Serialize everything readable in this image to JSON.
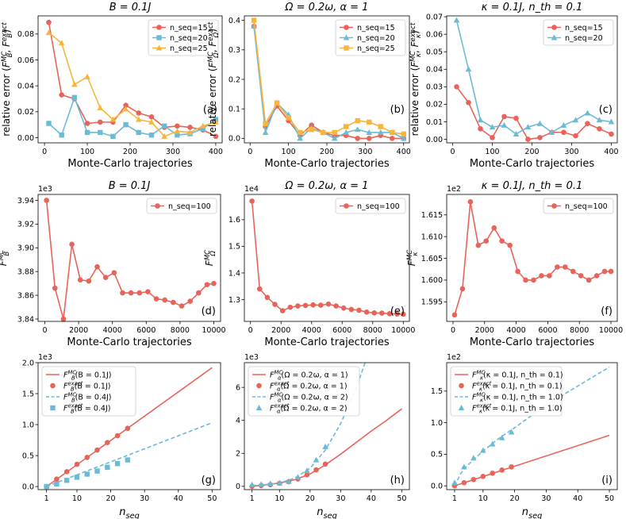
{
  "colors": {
    "red": "#e8645a",
    "blue": "#6bbad6",
    "orange": "#f7b53b"
  },
  "chart_data": [
    {
      "type": "line",
      "tag": "(a)",
      "title": "B = 0.1J",
      "xlabel": "Monte-Carlo trajectories",
      "ylabel": "relative error (F_B^MC, F_B^exact)",
      "xlim": [
        -15,
        415
      ],
      "ylim": [
        -0.004,
        0.094
      ],
      "xticks": [
        0,
        100,
        200,
        300,
        400
      ],
      "yticks": [
        0.0,
        0.02,
        0.04,
        0.06,
        0.08
      ],
      "legend_loc": "upper right",
      "series": [
        {
          "name": "n_seq=15",
          "color": "red",
          "marker": "circle",
          "x": [
            10,
            40,
            70,
            100,
            130,
            160,
            190,
            220,
            250,
            280,
            310,
            340,
            370,
            400
          ],
          "y": [
            0.089,
            0.033,
            0.03,
            0.011,
            0.012,
            0.012,
            0.025,
            0.019,
            0.016,
            0.008,
            0.009,
            0.008,
            0.006,
            0.001
          ]
        },
        {
          "name": "n_seq=20",
          "color": "blue",
          "marker": "square",
          "x": [
            10,
            40,
            70,
            100,
            130,
            160,
            190,
            220,
            250,
            280,
            310,
            340,
            370,
            400
          ],
          "y": [
            0.011,
            0.002,
            0.031,
            0.004,
            0.004,
            0.001,
            0.01,
            0.004,
            0.002,
            0.009,
            0.002,
            0.003,
            0.007,
            0.014
          ]
        },
        {
          "name": "n_seq=25",
          "color": "orange",
          "marker": "triangle",
          "x": [
            10,
            40,
            70,
            100,
            130,
            160,
            190,
            220,
            250,
            280,
            310,
            340,
            370,
            400
          ],
          "y": [
            0.081,
            0.073,
            0.041,
            0.047,
            0.023,
            0.014,
            0.022,
            0.014,
            0.012,
            0.001,
            0.005,
            0.004,
            0.009,
            0.012
          ]
        }
      ]
    },
    {
      "type": "line",
      "tag": "(b)",
      "title": "Ω = 0.2ω, α = 1",
      "xlabel": "Monte-Carlo trajectories",
      "ylabel": "relative error (F_Ω^MC, F_Ω^exact)",
      "xlim": [
        -15,
        415
      ],
      "ylim": [
        -0.015,
        0.415
      ],
      "xticks": [
        0,
        100,
        200,
        300,
        400
      ],
      "yticks": [
        0.0,
        0.1,
        0.2,
        0.3,
        0.4
      ],
      "legend_loc": "upper right",
      "series": [
        {
          "name": "n_seq=15",
          "color": "red",
          "marker": "circle",
          "x": [
            10,
            40,
            70,
            100,
            130,
            160,
            190,
            220,
            250,
            280,
            310,
            340,
            370,
            400
          ],
          "y": [
            0.38,
            0.04,
            0.11,
            0.06,
            0.01,
            0.045,
            0.02,
            0.01,
            0.01,
            0.0,
            0.0,
            0.01,
            0.0,
            0.0
          ]
        },
        {
          "name": "n_seq=20",
          "color": "blue",
          "marker": "triangle",
          "x": [
            10,
            40,
            70,
            100,
            130,
            160,
            190,
            220,
            250,
            280,
            310,
            340,
            370,
            400
          ],
          "y": [
            0.38,
            0.02,
            0.12,
            0.08,
            0.0,
            0.035,
            0.02,
            0.0,
            0.02,
            0.03,
            0.02,
            0.02,
            0.02,
            0.0
          ]
        },
        {
          "name": "n_seq=25",
          "color": "orange",
          "marker": "square",
          "x": [
            10,
            40,
            70,
            100,
            130,
            160,
            190,
            220,
            250,
            280,
            310,
            340,
            370,
            400
          ],
          "y": [
            0.4,
            0.05,
            0.12,
            0.07,
            0.02,
            0.03,
            0.02,
            0.02,
            0.04,
            0.06,
            0.055,
            0.04,
            0.02,
            0.015
          ]
        }
      ]
    },
    {
      "type": "line",
      "tag": "(c)",
      "title": "κ = 0.1J, n_th = 0.1",
      "xlabel": "Monte-Carlo trajectories",
      "ylabel": "relative error (F_κ^MC, F_κ^exact)",
      "xlim": [
        -15,
        415
      ],
      "ylim": [
        -0.002,
        0.0705
      ],
      "xticks": [
        0,
        100,
        200,
        300,
        400
      ],
      "yticks": [
        0.0,
        0.01,
        0.02,
        0.03,
        0.04,
        0.05,
        0.06,
        0.07
      ],
      "legend_loc": "upper right",
      "series": [
        {
          "name": "n_seq=15",
          "color": "red",
          "marker": "circle",
          "x": [
            10,
            40,
            70,
            100,
            130,
            160,
            190,
            220,
            250,
            280,
            310,
            340,
            370,
            400
          ],
          "y": [
            0.03,
            0.021,
            0.006,
            0.001,
            0.013,
            0.012,
            0.0,
            0.001,
            0.004,
            0.004,
            0.002,
            0.009,
            0.006,
            0.003
          ]
        },
        {
          "name": "n_seq=20",
          "color": "blue",
          "marker": "triangle",
          "x": [
            10,
            40,
            70,
            100,
            130,
            160,
            190,
            220,
            250,
            280,
            310,
            340,
            370,
            400
          ],
          "y": [
            0.068,
            0.04,
            0.011,
            0.007,
            0.008,
            0.003,
            0.007,
            0.009,
            0.004,
            0.008,
            0.011,
            0.015,
            0.011,
            0.01
          ]
        }
      ]
    },
    {
      "type": "line",
      "tag": "(d)",
      "title": "B = 0.1J",
      "xlabel": "Monte-Carlo trajectories",
      "ylabel": "F_B^MC",
      "sci": "1e3",
      "xlim": [
        -400,
        10400
      ],
      "ylim": [
        3.838,
        3.945
      ],
      "xticks": [
        0,
        2000,
        4000,
        6000,
        8000,
        10000
      ],
      "yticks": [
        3.84,
        3.86,
        3.88,
        3.9,
        3.92,
        3.94
      ],
      "legend_loc": "upper right",
      "series": [
        {
          "name": "n_seq=100",
          "color": "red",
          "marker": "circle",
          "x": [
            100,
            600,
            1100,
            1600,
            2100,
            2600,
            3100,
            3600,
            4100,
            4600,
            5100,
            5600,
            6100,
            6600,
            7100,
            7600,
            8100,
            8600,
            9100,
            9600,
            10000
          ],
          "y": [
            3.94,
            3.866,
            3.84,
            3.903,
            3.873,
            3.872,
            3.884,
            3.875,
            3.879,
            3.862,
            3.862,
            3.862,
            3.863,
            3.857,
            3.856,
            3.854,
            3.851,
            3.855,
            3.862,
            3.869,
            3.87
          ]
        }
      ]
    },
    {
      "type": "line",
      "tag": "(e)",
      "title": "Ω = 0.2ω, α = 1",
      "xlabel": "Monte-Carlo trajectories",
      "ylabel": "F_Ω^MC",
      "sci": "1e4",
      "xlim": [
        -400,
        10400
      ],
      "ylim": [
        1.218,
        1.695
      ],
      "xticks": [
        0,
        2000,
        4000,
        6000,
        8000,
        10000
      ],
      "yticks": [
        1.3,
        1.4,
        1.5,
        1.6
      ],
      "legend_loc": "upper right",
      "series": [
        {
          "name": "n_seq=100",
          "color": "red",
          "marker": "circle",
          "x": [
            100,
            600,
            1100,
            1600,
            2100,
            2600,
            3100,
            3600,
            4100,
            4600,
            5100,
            5600,
            6100,
            6600,
            7100,
            7600,
            8100,
            8600,
            9100,
            9600,
            10000
          ],
          "y": [
            1.67,
            1.34,
            1.308,
            1.282,
            1.258,
            1.271,
            1.276,
            1.278,
            1.28,
            1.279,
            1.283,
            1.276,
            1.268,
            1.263,
            1.26,
            1.253,
            1.25,
            1.249,
            1.247,
            1.246,
            1.245
          ]
        }
      ]
    },
    {
      "type": "line",
      "tag": "(f)",
      "title": "κ = 0.1J, n_th = 0.1",
      "xlabel": "Monte-Carlo trajectories",
      "ylabel": "F_κ^MC",
      "sci": "1e2",
      "xlim": [
        -400,
        10400
      ],
      "ylim": [
        1.5905,
        1.6197
      ],
      "xticks": [
        0,
        2000,
        4000,
        6000,
        8000,
        10000
      ],
      "yticks": [
        1.595,
        1.6,
        1.605,
        1.61,
        1.615
      ],
      "legend_loc": "upper right",
      "series": [
        {
          "name": "n_seq=100",
          "color": "red",
          "marker": "circle",
          "x": [
            100,
            600,
            1100,
            1600,
            2100,
            2600,
            3100,
            3600,
            4100,
            4600,
            5100,
            5600,
            6100,
            6600,
            7100,
            7600,
            8100,
            8600,
            9100,
            9600,
            10000
          ],
          "y": [
            1.592,
            1.598,
            1.618,
            1.608,
            1.609,
            1.612,
            1.609,
            1.608,
            1.602,
            1.6,
            1.6,
            1.601,
            1.601,
            1.603,
            1.603,
            1.602,
            1.601,
            1.6,
            1.601,
            1.602,
            1.602
          ]
        }
      ]
    },
    {
      "type": "line",
      "tag": "(g)",
      "title": "",
      "xlabel": "n_seq",
      "ylabel": "",
      "sci": "1e3",
      "xlim": [
        -1.5,
        52.5
      ],
      "ylim": [
        -0.05,
        2.0
      ],
      "xticks": [
        1,
        10,
        20,
        30,
        40,
        50
      ],
      "yticks": [
        0.0,
        0.5,
        1.0,
        1.5,
        2.0
      ],
      "legend_loc": "upper left",
      "series": [
        {
          "name": "F_B^MC(B = 0.1J)",
          "color": "red",
          "style": "solid",
          "x": [
            1,
            50
          ],
          "y": [
            0.0,
            1.92
          ]
        },
        {
          "name": "F_B^exact(B = 0.1J)",
          "color": "red",
          "marker": "circle",
          "x": [
            1,
            4,
            7,
            10,
            13,
            16,
            19,
            22,
            25
          ],
          "y": [
            0.0,
            0.12,
            0.24,
            0.36,
            0.47,
            0.59,
            0.71,
            0.82,
            0.94
          ]
        },
        {
          "name": "F_B^MC(B = 0.4J)",
          "color": "blue",
          "style": "dashed",
          "x": [
            1,
            50
          ],
          "y": [
            0.0,
            1.03
          ]
        },
        {
          "name": "F_B^exact(B = 0.4J)",
          "color": "blue",
          "marker": "square",
          "x": [
            1,
            4,
            7,
            10,
            13,
            16,
            19,
            22,
            25
          ],
          "y": [
            0.0,
            0.04,
            0.1,
            0.15,
            0.2,
            0.25,
            0.31,
            0.37,
            0.43
          ]
        }
      ]
    },
    {
      "type": "line",
      "tag": "(h)",
      "title": "",
      "xlabel": "n_seq",
      "ylabel": "",
      "sci": "1e3",
      "xlim": [
        -1.5,
        52.5
      ],
      "ylim": [
        -0.2,
        7.5
      ],
      "xticks": [
        1,
        10,
        20,
        30,
        40,
        50
      ],
      "yticks": [
        0,
        2,
        4,
        6
      ],
      "legend_loc": "upper left",
      "series": [
        {
          "name": "F_α^MC(Ω = 0.2ω, α = 1)",
          "color": "red",
          "style": "solid",
          "x": [
            1,
            5,
            10,
            15,
            20,
            25,
            30,
            35,
            40,
            45,
            50
          ],
          "y": [
            0.0,
            0.08,
            0.2,
            0.4,
            0.75,
            1.3,
            1.95,
            2.65,
            3.35,
            4.0,
            4.7
          ]
        },
        {
          "name": "F_α^exact(Ω = 0.2ω, α = 1)",
          "color": "red",
          "marker": "circle",
          "x": [
            1,
            4,
            7,
            10,
            13,
            16,
            19,
            22,
            25
          ],
          "y": [
            0.0,
            0.05,
            0.1,
            0.18,
            0.28,
            0.45,
            0.7,
            1.0,
            1.35
          ]
        },
        {
          "name": "F_α^MC(Ω = 0.2ω, α = 2)",
          "color": "blue",
          "style": "dashed",
          "x": [
            1,
            5,
            10,
            15,
            20,
            25,
            30,
            35,
            38
          ],
          "y": [
            0.05,
            0.1,
            0.2,
            0.5,
            1.1,
            2.2,
            3.8,
            5.9,
            7.5
          ]
        },
        {
          "name": "F_α^exact(Ω = 0.2ω, α = 2)",
          "color": "blue",
          "marker": "triangle",
          "x": [
            1,
            4,
            7,
            10,
            13,
            16,
            19,
            22,
            25
          ],
          "y": [
            0.1,
            0.12,
            0.16,
            0.2,
            0.3,
            0.55,
            0.95,
            1.6,
            2.4
          ]
        }
      ]
    },
    {
      "type": "line",
      "tag": "(i)",
      "title": "",
      "xlabel": "n_seq",
      "ylabel": "",
      "sci": "1e2",
      "xlim": [
        -1.5,
        52.5
      ],
      "ylim": [
        -0.06,
        1.95
      ],
      "xticks": [
        1,
        10,
        20,
        30,
        40,
        50
      ],
      "yticks": [
        0.0,
        0.5,
        1.0,
        1.5
      ],
      "legend_loc": "upper left",
      "series": [
        {
          "name": "F_κ^MC(κ = 0.1J, n_th = 0.1)",
          "color": "red",
          "style": "solid",
          "x": [
            1,
            50
          ],
          "y": [
            0.0,
            0.8
          ]
        },
        {
          "name": "F_κ^exact(κ = 0.1J, n_th = 0.1)",
          "color": "red",
          "marker": "circle",
          "x": [
            1,
            4,
            7,
            10,
            13,
            16,
            19
          ],
          "y": [
            0.0,
            0.05,
            0.1,
            0.15,
            0.2,
            0.25,
            0.3
          ]
        },
        {
          "name": "F_κ^MC(κ = 0.1J, n_th = 1.0)",
          "color": "blue",
          "style": "dashed",
          "x": [
            1,
            3,
            5,
            10,
            15,
            20,
            25,
            30,
            35,
            40,
            45,
            50
          ],
          "y": [
            0.0,
            0.2,
            0.32,
            0.55,
            0.75,
            0.92,
            1.1,
            1.28,
            1.43,
            1.58,
            1.73,
            1.88
          ]
        },
        {
          "name": "F_κ^exact(κ = 0.1J, n_th = 1.0)",
          "color": "blue",
          "marker": "triangle",
          "x": [
            1,
            4,
            7,
            10,
            13,
            16,
            19
          ],
          "y": [
            0.05,
            0.3,
            0.44,
            0.56,
            0.66,
            0.76,
            0.85
          ]
        }
      ]
    }
  ]
}
